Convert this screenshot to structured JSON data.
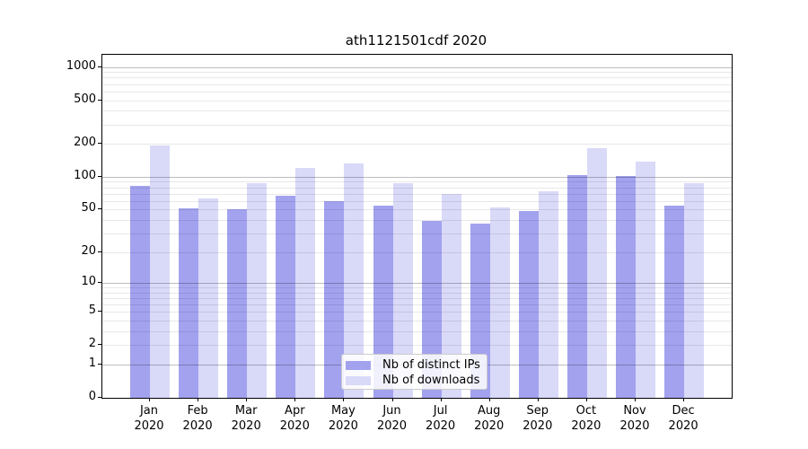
{
  "chart_data": {
    "type": "bar",
    "title": "ath1121501cdf 2020",
    "months": [
      "Jan",
      "Feb",
      "Mar",
      "Apr",
      "May",
      "Jun",
      "Jul",
      "Aug",
      "Sep",
      "Oct",
      "Nov",
      "Dec"
    ],
    "year": "2020",
    "series": [
      {
        "name": "Nb of distinct IPs",
        "color": "#a2a2ef",
        "values": [
          82,
          51,
          50,
          67,
          60,
          54,
          39,
          37,
          48,
          103,
          101,
          54
        ]
      },
      {
        "name": "Nb of downloads",
        "color": "#d9d9f8",
        "values": [
          193,
          63,
          88,
          120,
          132,
          87,
          70,
          52,
          74,
          182,
          137,
          88
        ]
      }
    ],
    "yscale": "log1p",
    "y_ticks": [
      1000,
      500,
      200,
      100,
      50,
      20,
      10,
      5,
      2,
      1,
      0
    ],
    "y_gridlines_major": [
      1,
      10,
      100,
      1000
    ],
    "y_gridlines_minor": [
      2,
      3,
      4,
      5,
      6,
      7,
      8,
      9,
      20,
      30,
      40,
      50,
      60,
      70,
      80,
      90,
      200,
      300,
      400,
      500,
      600,
      700,
      800,
      900
    ],
    "ylim": [
      0,
      1290
    ],
    "grid": true,
    "legend_position": "lower center"
  },
  "colors": {
    "background": "#ffffff",
    "spine": "#000000",
    "bar_dark": "#a2a2ef",
    "bar_light": "#d9d9f8",
    "text": "#000000"
  }
}
